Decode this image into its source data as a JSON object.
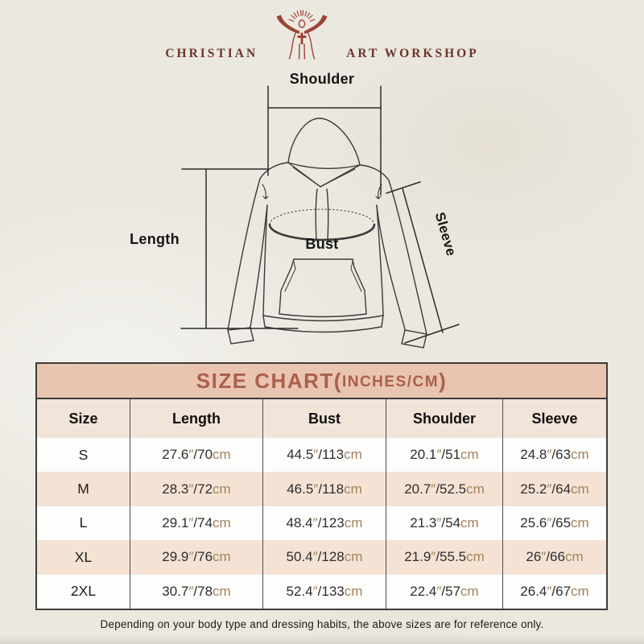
{
  "logo": {
    "left": "CHRISTIAN",
    "right": "ART WORKSHOP",
    "figure_icon": "jesus-open-arms-rays-icon"
  },
  "diagram": {
    "labels": {
      "shoulder": "Shoulder",
      "length": "Length",
      "bust": "Bust",
      "sleeve": "Sleeve"
    }
  },
  "size_chart": {
    "title_prefix": "SIZE CHART(",
    "title_unit": "INCHES/CM",
    "title_suffix": ")",
    "columns": [
      "Size",
      "Length",
      "Bust",
      "Shoulder",
      "Sleeve"
    ],
    "measure_keys": [
      "length",
      "bust",
      "shoulder",
      "sleeve"
    ],
    "units": {
      "inch_mark": "″",
      "cm_label": "cm",
      "separator": "/"
    },
    "rows": [
      {
        "size": "S",
        "length": {
          "in": "27.6",
          "cm": "70"
        },
        "bust": {
          "in": "44.5",
          "cm": "113"
        },
        "shoulder": {
          "in": "20.1",
          "cm": "51"
        },
        "sleeve": {
          "in": "24.8",
          "cm": "63"
        }
      },
      {
        "size": "M",
        "length": {
          "in": "28.3",
          "cm": "72"
        },
        "bust": {
          "in": "46.5",
          "cm": "118"
        },
        "shoulder": {
          "in": "20.7",
          "cm": "52.5"
        },
        "sleeve": {
          "in": "25.2",
          "cm": "64"
        }
      },
      {
        "size": "L",
        "length": {
          "in": "29.1",
          "cm": "74"
        },
        "bust": {
          "in": "48.4",
          "cm": "123"
        },
        "shoulder": {
          "in": "21.3",
          "cm": "54"
        },
        "sleeve": {
          "in": "25.6",
          "cm": "65"
        }
      },
      {
        "size": "XL",
        "length": {
          "in": "29.9",
          "cm": "76"
        },
        "bust": {
          "in": "50.4",
          "cm": "128"
        },
        "shoulder": {
          "in": "21.9",
          "cm": "55.5"
        },
        "sleeve": {
          "in": "26",
          "cm": "66"
        }
      },
      {
        "size": "2XL",
        "length": {
          "in": "30.7",
          "cm": "78"
        },
        "bust": {
          "in": "52.4",
          "cm": "133"
        },
        "shoulder": {
          "in": "22.4",
          "cm": "57"
        },
        "sleeve": {
          "in": "26.4",
          "cm": "67"
        }
      }
    ]
  },
  "footer": {
    "note": "Depending on your body type and dressing habits, the above sizes are for reference only."
  },
  "colors": {
    "background": "#ebe8e0",
    "logo_red": "#9c4434",
    "logo_text": "#6b3529",
    "title_bar_bg": "#e9c4b0",
    "title_text": "#a9604c",
    "header_row_bg": "#f1e4d9",
    "row_alt_bg": "#f4e3d5",
    "unit_text": "#a3825a",
    "table_border": "#3c3c3c"
  }
}
